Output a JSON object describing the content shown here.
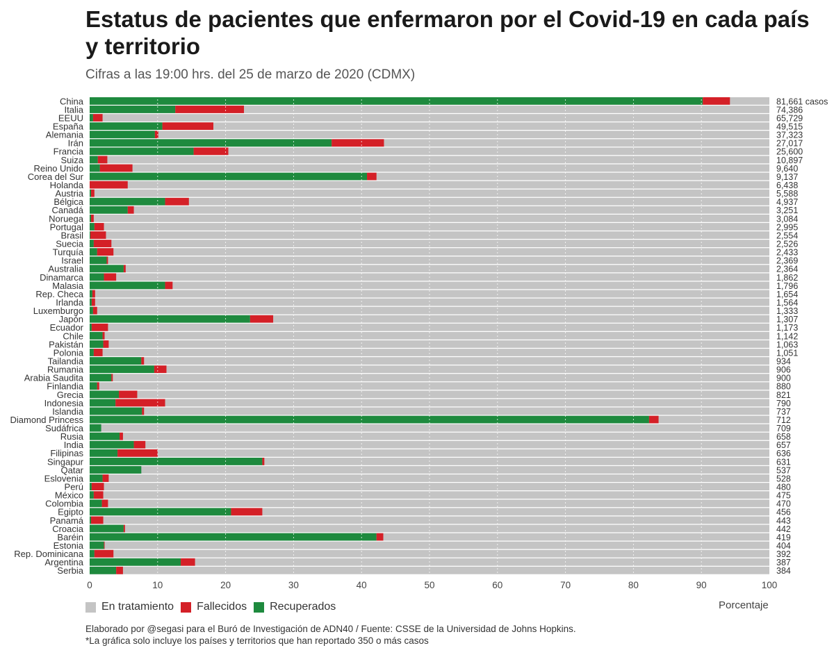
{
  "header": {
    "title": "Estatus de pacientes que enfermaron por el Covid-19 en cada país y territorio",
    "subtitle": "Cifras a las 19:00 hrs. del 25 de marzo de 2020 (CDMX)"
  },
  "legend": {
    "items": [
      {
        "label": "En tratamiento",
        "color": "#c4c4c4"
      },
      {
        "label": "Fallecidos",
        "color": "#d42027"
      },
      {
        "label": "Recuperados",
        "color": "#1e8a3e"
      }
    ],
    "axis_title": "Porcentaje"
  },
  "footer": {
    "line1": "Elaborado por @segasi para el Buró de Investigación de ADN40 / Fuente: CSSE de la Universidad de Johns Hopkins.",
    "line2": "*La gráfica solo incluye los países y territorios que han reportado 350 o más casos"
  },
  "colors": {
    "treatment": "#c4c4c4",
    "deaths": "#d42027",
    "recovered": "#1e8a3e"
  },
  "chart_data": {
    "type": "bar",
    "orientation": "horizontal",
    "stacked": true,
    "xlabel": "Porcentaje",
    "xlim": [
      0,
      100
    ],
    "xticks": [
      0,
      10,
      20,
      30,
      40,
      50,
      60,
      70,
      80,
      90,
      100
    ],
    "grid": "vertical dotted white lines at each 10%",
    "series_order": [
      "Recuperados",
      "Fallecidos",
      "En tratamiento"
    ],
    "rows": [
      {
        "country": "China",
        "cases": "81,661 casos",
        "recovered": 90.2,
        "deaths": 4.0
      },
      {
        "country": "Italia",
        "cases": "74,386",
        "recovered": 12.6,
        "deaths": 10.1
      },
      {
        "country": "EEUU",
        "cases": "65,729",
        "recovered": 0.5,
        "deaths": 1.4
      },
      {
        "country": "España",
        "cases": "49,515",
        "recovered": 10.7,
        "deaths": 7.5
      },
      {
        "country": "Alemania",
        "cases": "37,323",
        "recovered": 9.6,
        "deaths": 0.5
      },
      {
        "country": "Irán",
        "cases": "27,017",
        "recovered": 35.6,
        "deaths": 7.7
      },
      {
        "country": "Francia",
        "cases": "25,600",
        "recovered": 15.3,
        "deaths": 5.1
      },
      {
        "country": "Suiza",
        "cases": "10,897",
        "recovered": 1.2,
        "deaths": 1.4
      },
      {
        "country": "Reino Unido",
        "cases": "9,640",
        "recovered": 1.5,
        "deaths": 4.8
      },
      {
        "country": "Corea del Sur",
        "cases": "9,137",
        "recovered": 40.8,
        "deaths": 1.4
      },
      {
        "country": "Holanda",
        "cases": "6,438",
        "recovered": 0.0,
        "deaths": 5.6
      },
      {
        "country": "Austria",
        "cases": "5,588",
        "recovered": 0.2,
        "deaths": 0.5
      },
      {
        "country": "Bélgica",
        "cases": "4,937",
        "recovered": 11.1,
        "deaths": 3.5
      },
      {
        "country": "Canadá",
        "cases": "3,251",
        "recovered": 5.6,
        "deaths": 0.9
      },
      {
        "country": "Noruega",
        "cases": "3,084",
        "recovered": 0.2,
        "deaths": 0.4
      },
      {
        "country": "Portugal",
        "cases": "2,995",
        "recovered": 0.7,
        "deaths": 1.4
      },
      {
        "country": "Brasil",
        "cases": "2,554",
        "recovered": 0.1,
        "deaths": 2.3
      },
      {
        "country": "Suecia",
        "cases": "2,526",
        "recovered": 0.6,
        "deaths": 2.6
      },
      {
        "country": "Turquía",
        "cases": "2,433",
        "recovered": 1.1,
        "deaths": 2.4
      },
      {
        "country": "Israel",
        "cases": "2,369",
        "recovered": 2.5,
        "deaths": 0.2
      },
      {
        "country": "Australia",
        "cases": "2,364",
        "recovered": 5.0,
        "deaths": 0.3
      },
      {
        "country": "Dinamarca",
        "cases": "1,862",
        "recovered": 2.1,
        "deaths": 1.8
      },
      {
        "country": "Malasia",
        "cases": "1,796",
        "recovered": 11.1,
        "deaths": 1.1
      },
      {
        "country": "Rep. Checa",
        "cases": "1,654",
        "recovered": 0.4,
        "deaths": 0.4
      },
      {
        "country": "Irlanda",
        "cases": "1,564",
        "recovered": 0.3,
        "deaths": 0.5
      },
      {
        "country": "Luxemburgo",
        "cases": "1,333",
        "recovered": 0.5,
        "deaths": 0.6
      },
      {
        "country": "Japón",
        "cases": "1,307",
        "recovered": 23.6,
        "deaths": 3.4
      },
      {
        "country": "Ecuador",
        "cases": "1,173",
        "recovered": 0.3,
        "deaths": 2.4
      },
      {
        "country": "Chile",
        "cases": "1,142",
        "recovered": 1.9,
        "deaths": 0.3
      },
      {
        "country": "Pakistán",
        "cases": "1,063",
        "recovered": 2.0,
        "deaths": 0.8
      },
      {
        "country": "Polonia",
        "cases": "1,051",
        "recovered": 0.6,
        "deaths": 1.3
      },
      {
        "country": "Tailandia",
        "cases": "934",
        "recovered": 7.6,
        "deaths": 0.4
      },
      {
        "country": "Rumania",
        "cases": "906",
        "recovered": 9.5,
        "deaths": 1.8
      },
      {
        "country": "Arabia Saudita",
        "cases": "900",
        "recovered": 3.2,
        "deaths": 0.2
      },
      {
        "country": "Finlandia",
        "cases": "880",
        "recovered": 1.1,
        "deaths": 0.3
      },
      {
        "country": "Grecia",
        "cases": "821",
        "recovered": 4.3,
        "deaths": 2.7
      },
      {
        "country": "Indonesia",
        "cases": "790",
        "recovered": 3.8,
        "deaths": 7.3
      },
      {
        "country": "Islandia",
        "cases": "737",
        "recovered": 7.7,
        "deaths": 0.3
      },
      {
        "country": "Diamond Princess",
        "cases": "712",
        "recovered": 82.3,
        "deaths": 1.4
      },
      {
        "country": "Sudáfrica",
        "cases": "709",
        "recovered": 1.7,
        "deaths": 0.0
      },
      {
        "country": "Rusia",
        "cases": "658",
        "recovered": 4.4,
        "deaths": 0.5
      },
      {
        "country": "India",
        "cases": "657",
        "recovered": 6.5,
        "deaths": 1.7
      },
      {
        "country": "Filipinas",
        "cases": "636",
        "recovered": 4.1,
        "deaths": 5.9
      },
      {
        "country": "Singapur",
        "cases": "631",
        "recovered": 25.4,
        "deaths": 0.3
      },
      {
        "country": "Qatar",
        "cases": "537",
        "recovered": 7.6,
        "deaths": 0.0
      },
      {
        "country": "Eslovenia",
        "cases": "528",
        "recovered": 1.9,
        "deaths": 0.9
      },
      {
        "country": "Perú",
        "cases": "480",
        "recovered": 0.3,
        "deaths": 1.8
      },
      {
        "country": "México",
        "cases": "475",
        "recovered": 0.6,
        "deaths": 1.4
      },
      {
        "country": "Colombia",
        "cases": "470",
        "recovered": 1.8,
        "deaths": 0.9
      },
      {
        "country": "Egipto",
        "cases": "456",
        "recovered": 20.8,
        "deaths": 4.6
      },
      {
        "country": "Panamá",
        "cases": "443",
        "recovered": 0.2,
        "deaths": 1.8
      },
      {
        "country": "Croacia",
        "cases": "442",
        "recovered": 5.0,
        "deaths": 0.2
      },
      {
        "country": "Baréin",
        "cases": "419",
        "recovered": 42.2,
        "deaths": 1.0
      },
      {
        "country": "Estonia",
        "cases": "404",
        "recovered": 2.1,
        "deaths": 0.1
      },
      {
        "country": "Rep. Dominicana",
        "cases": "392",
        "recovered": 0.7,
        "deaths": 2.8
      },
      {
        "country": "Argentina",
        "cases": "387",
        "recovered": 13.4,
        "deaths": 2.1
      },
      {
        "country": "Serbia",
        "cases": "384",
        "recovered": 3.9,
        "deaths": 1.0
      }
    ]
  }
}
